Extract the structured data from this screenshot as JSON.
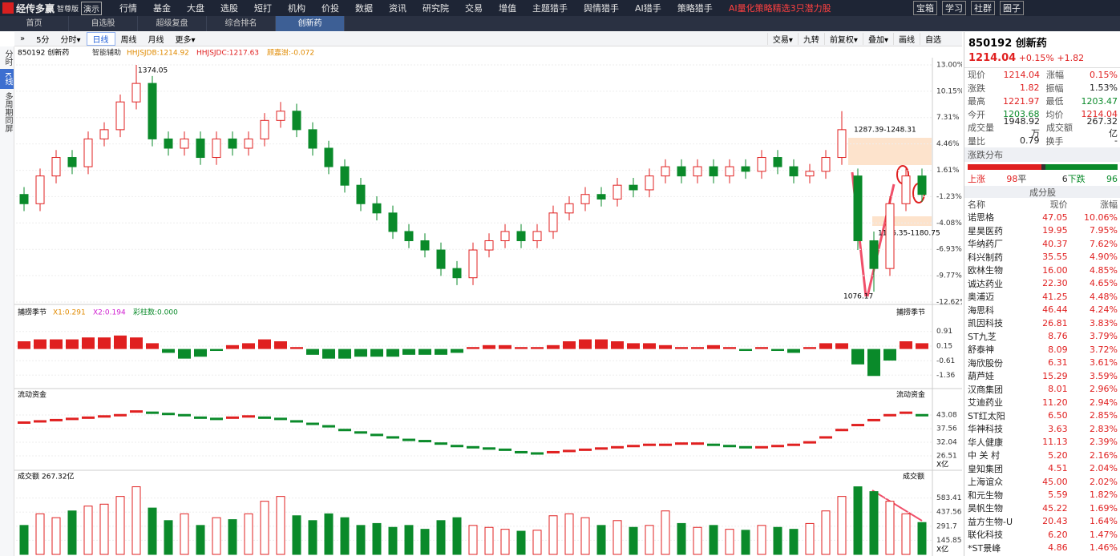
{
  "app": {
    "brand": "经传多赢",
    "edition": "智尊版",
    "demo": "演示",
    "menu": [
      "行情",
      "基金",
      "大盘",
      "选股",
      "短打",
      "机构",
      "价投",
      "数据",
      "资讯",
      "研究院",
      "交易",
      "增值",
      "主题猎手",
      "舆情猎手",
      "AI猎手",
      "策略猎手"
    ],
    "promo": "AI量化策略精选3只潜力股",
    "right_menu": [
      "宝箱",
      "学习",
      "社群",
      "圈子"
    ],
    "zoom": "100%",
    "tabs": [
      "首页",
      "自选股",
      "超级复盘",
      "综合排名",
      "创新药"
    ],
    "side_tabs": [
      "分时",
      "K线",
      "多周期同屏"
    ],
    "periods": [
      "5分",
      "分时▾",
      "日线",
      "周线",
      "月线",
      "更多▾"
    ],
    "tools": [
      "交易▾",
      "九转",
      "前复权▾",
      "叠加▾",
      "画线",
      "自选"
    ]
  },
  "chart_data": {
    "type": "candlestick",
    "title": "850192 创新药",
    "assist": "智能辅助",
    "indicators": [
      "HHJSJDB:1214.92",
      "HHJSJDC:1217.63",
      "顾嘉澍:-0.072"
    ],
    "ylim": [
      -12.71,
      13.78
    ],
    "yticks": [
      {
        "value": 13.0,
        "label": "13.00%"
      },
      {
        "value": 10.15,
        "label": "10.15%"
      },
      {
        "value": 7.31,
        "label": "7.31%"
      },
      {
        "value": 4.46,
        "label": "4.46%"
      },
      {
        "value": 1.61,
        "label": "1.61%"
      },
      {
        "value": -1.23,
        "label": "-1.23%"
      },
      {
        "value": -4.08,
        "label": "-4.08%"
      },
      {
        "value": -6.93,
        "label": "-6.93%"
      },
      {
        "value": -9.77,
        "label": "-9.77%"
      },
      {
        "value": -12.62,
        "label": "-12.62%"
      }
    ],
    "annotations": [
      "1374.05",
      "1287.39-1248.31",
      "1146.35-1180.75",
      "1076.17"
    ],
    "candles": [
      [
        -1,
        -2,
        -0.2,
        -2.8
      ],
      [
        -2,
        1,
        1.8,
        -2.8
      ],
      [
        1,
        3,
        3.8,
        0.2
      ],
      [
        3,
        2,
        3.8,
        1.2
      ],
      [
        2,
        5,
        5.8,
        1.2
      ],
      [
        5,
        6,
        6.8,
        4.2
      ],
      [
        6,
        9,
        9.8,
        5.2
      ],
      [
        9,
        11,
        13,
        8.2
      ],
      [
        11,
        5,
        11.8,
        4.2
      ],
      [
        5,
        4,
        5.8,
        3.2
      ],
      [
        4,
        5,
        5.8,
        3.2
      ],
      [
        5,
        3,
        5.8,
        2.2
      ],
      [
        3,
        5,
        5.8,
        2.2
      ],
      [
        5,
        4,
        5.8,
        3.2
      ],
      [
        4,
        5,
        5.8,
        3.2
      ],
      [
        5,
        7,
        7.8,
        4.2
      ],
      [
        7,
        8,
        9,
        6.2
      ],
      [
        8,
        6,
        8.8,
        5.2
      ],
      [
        6,
        4,
        6.8,
        3.2
      ],
      [
        4,
        2,
        4.8,
        1.2
      ],
      [
        2,
        0,
        2.8,
        -0.8
      ],
      [
        0,
        -2,
        0.8,
        -2.8
      ],
      [
        -2,
        -3,
        -1.2,
        -3.8
      ],
      [
        -3,
        -5,
        -2.2,
        -5.8
      ],
      [
        -5,
        -6,
        -4.2,
        -6.8
      ],
      [
        -6,
        -7,
        -5.2,
        -7.8
      ],
      [
        -7,
        -9,
        -6.2,
        -9.8
      ],
      [
        -9,
        -10,
        -8.2,
        -10.8
      ],
      [
        -10,
        -7,
        -6.2,
        -10.8
      ],
      [
        -7,
        -6,
        -5.2,
        -7.8
      ],
      [
        -6,
        -5,
        -4.2,
        -6.8
      ],
      [
        -5,
        -6,
        -4.2,
        -6.8
      ],
      [
        -6,
        -5,
        -4.2,
        -6.8
      ],
      [
        -5,
        -3,
        -2.2,
        -5.8
      ],
      [
        -3,
        -2,
        -1.2,
        -3.8
      ],
      [
        -2,
        -1,
        -0.2,
        -2.8
      ],
      [
        -1,
        -1.5,
        -0.2,
        -2.3
      ],
      [
        -1.5,
        0,
        0.8,
        -2.3
      ],
      [
        0,
        -0.5,
        0.8,
        -1.3
      ],
      [
        -0.5,
        1,
        1.8,
        -1.3
      ],
      [
        1,
        2,
        2.8,
        0.2
      ],
      [
        2,
        1,
        2.8,
        0.2
      ],
      [
        1,
        2,
        2.8,
        0.2
      ],
      [
        2,
        1,
        2.8,
        0.2
      ],
      [
        1,
        2,
        2.8,
        0.2
      ],
      [
        2,
        1.5,
        2.8,
        0.7
      ],
      [
        1.5,
        3,
        3.8,
        0.7
      ],
      [
        3,
        2,
        3.8,
        1.2
      ],
      [
        2,
        1,
        2.8,
        0.2
      ],
      [
        1,
        1.5,
        2.3,
        0.2
      ],
      [
        1.5,
        3,
        3.8,
        0.7
      ],
      [
        3,
        6,
        8,
        2.2
      ],
      [
        1,
        -6,
        1.8,
        -7
      ],
      [
        -6,
        -9,
        -5,
        -11.5
      ],
      [
        -9,
        -2,
        -1.2,
        -9.8
      ],
      [
        -2,
        1,
        1.8,
        -2.8
      ],
      [
        1,
        -1,
        1.8,
        -1.8
      ]
    ],
    "macd": {
      "title": "捕捞季节",
      "legend": [
        "X1:0.291",
        "X2:0.194",
        "彩柱数:0.000"
      ],
      "ylim": [
        -1.93,
        1.69
      ],
      "yticks": [
        0.91,
        0.15,
        -0.61,
        -1.36
      ],
      "values": [
        0.4,
        0.5,
        0.5,
        0.5,
        0.6,
        0.6,
        0.7,
        0.6,
        0.3,
        -0.2,
        -0.5,
        -0.4,
        -0.1,
        0.2,
        0.3,
        0.5,
        0.4,
        0.1,
        -0.3,
        -0.5,
        -0.5,
        -0.4,
        -0.4,
        -0.4,
        -0.3,
        -0.3,
        -0.3,
        -0.2,
        0.1,
        0.2,
        0.2,
        0.1,
        0.1,
        0.2,
        0.4,
        0.5,
        0.5,
        0.4,
        0.3,
        0.3,
        0.2,
        0.1,
        0.1,
        0.2,
        0.1,
        -0.1,
        0.1,
        -0.1,
        -0.2,
        0.1,
        0.3,
        0.3,
        -0.8,
        -1.4,
        -0.6,
        0.4,
        0.3
      ]
    },
    "flow": {
      "title": "流动资金",
      "unit": "X亿",
      "ylim": [
        23.6,
        49.9
      ],
      "yticks": [
        43.08,
        37.56,
        32.04,
        26.51
      ],
      "values": [
        40,
        40.5,
        41,
        41.5,
        42,
        42.5,
        43,
        44.5,
        44,
        43.5,
        43,
        42,
        41.5,
        42,
        42.5,
        42,
        41.5,
        40.5,
        39.5,
        38.5,
        37,
        36,
        35,
        34,
        33,
        32.5,
        31.5,
        30.5,
        30,
        29.5,
        29,
        28,
        27.5,
        28,
        28.5,
        29,
        29.5,
        30,
        30.5,
        31,
        31,
        31.5,
        31.5,
        31,
        30.5,
        30,
        30,
        30.5,
        31,
        32,
        34,
        37,
        39,
        41,
        43,
        44,
        43
      ]
    },
    "volume": {
      "title": "成交额",
      "total": "267.32亿",
      "unit": "X亿",
      "ylim": [
        0,
        763
      ],
      "yticks": [
        583.41,
        437.56,
        291.7,
        145.85
      ],
      "values": [
        300,
        420,
        380,
        450,
        500,
        520,
        600,
        700,
        480,
        350,
        420,
        300,
        380,
        360,
        420,
        550,
        600,
        400,
        350,
        420,
        380,
        300,
        320,
        280,
        300,
        260,
        350,
        380,
        300,
        280,
        260,
        240,
        250,
        400,
        420,
        380,
        300,
        350,
        280,
        300,
        450,
        320,
        280,
        300,
        260,
        250,
        300,
        280,
        260,
        320,
        450,
        600,
        700,
        650,
        550,
        420,
        330
      ]
    }
  },
  "quote": {
    "name": "850192 创新药",
    "price": "1214.04",
    "change_pct": "+0.15%",
    "change": "+1.82",
    "stats": [
      [
        "现价",
        "1214.04",
        "涨幅",
        "0.15%"
      ],
      [
        "涨跌",
        "1.82",
        "振幅",
        "1.53%"
      ],
      [
        "最高",
        "1221.97",
        "最低",
        "1203.47"
      ],
      [
        "今开",
        "1203.68",
        "均价",
        "1214.04"
      ],
      [
        "成交量",
        "1948.92万",
        "成交额",
        "267.32亿"
      ],
      [
        "量比",
        "0.79",
        "换手",
        "-"
      ]
    ],
    "stat_colors": [
      [
        "#e02020",
        "#e02020"
      ],
      [
        "#e02020",
        "#222"
      ],
      [
        "#e02020",
        "#0a8a2a"
      ],
      [
        "#0a8a2a",
        "#e02020"
      ],
      [
        "#222",
        "#222"
      ],
      [
        "#222",
        "#222"
      ]
    ],
    "dist_title": "涨跌分布",
    "dist": [
      "上涨",
      "98",
      "平",
      "6",
      "下跌",
      "96"
    ],
    "list_title": "成分股",
    "headers": [
      "名称",
      "现价",
      "涨幅"
    ],
    "rows": [
      [
        "诺思格",
        "47.05",
        "10.06%"
      ],
      [
        "星昊医药",
        "19.95",
        "7.95%"
      ],
      [
        "华纳药厂",
        "40.37",
        "7.62%"
      ],
      [
        "科兴制药",
        "35.55",
        "4.90%"
      ],
      [
        "欧林生物",
        "16.00",
        "4.85%"
      ],
      [
        "诚达药业",
        "22.30",
        "4.65%"
      ],
      [
        "奥浦迈",
        "41.25",
        "4.48%"
      ],
      [
        "海思科",
        "46.44",
        "4.24%"
      ],
      [
        "凯因科技",
        "26.81",
        "3.83%"
      ],
      [
        "ST九芝",
        "8.76",
        "3.79%"
      ],
      [
        "舒泰神",
        "8.09",
        "3.72%"
      ],
      [
        "海欣股份",
        "6.31",
        "3.61%"
      ],
      [
        "葫芦娃",
        "15.29",
        "3.59%"
      ],
      [
        "汉商集团",
        "8.01",
        "2.96%"
      ],
      [
        "艾迪药业",
        "11.20",
        "2.94%"
      ],
      [
        "ST红太阳",
        "6.50",
        "2.85%"
      ],
      [
        "华神科技",
        "3.63",
        "2.83%"
      ],
      [
        "华人健康",
        "11.13",
        "2.39%"
      ],
      [
        "中 关 村",
        "5.20",
        "2.16%"
      ],
      [
        "皇知集团",
        "4.51",
        "2.04%"
      ],
      [
        "上海谊众",
        "45.00",
        "2.02%"
      ],
      [
        "和元生物",
        "5.59",
        "1.82%"
      ],
      [
        "昊帆生物",
        "45.22",
        "1.69%"
      ],
      [
        "益方生物-U",
        "20.43",
        "1.64%"
      ],
      [
        "联化科技",
        "6.20",
        "1.47%"
      ],
      [
        "*ST景峰",
        "4.86",
        "1.46%"
      ]
    ]
  }
}
